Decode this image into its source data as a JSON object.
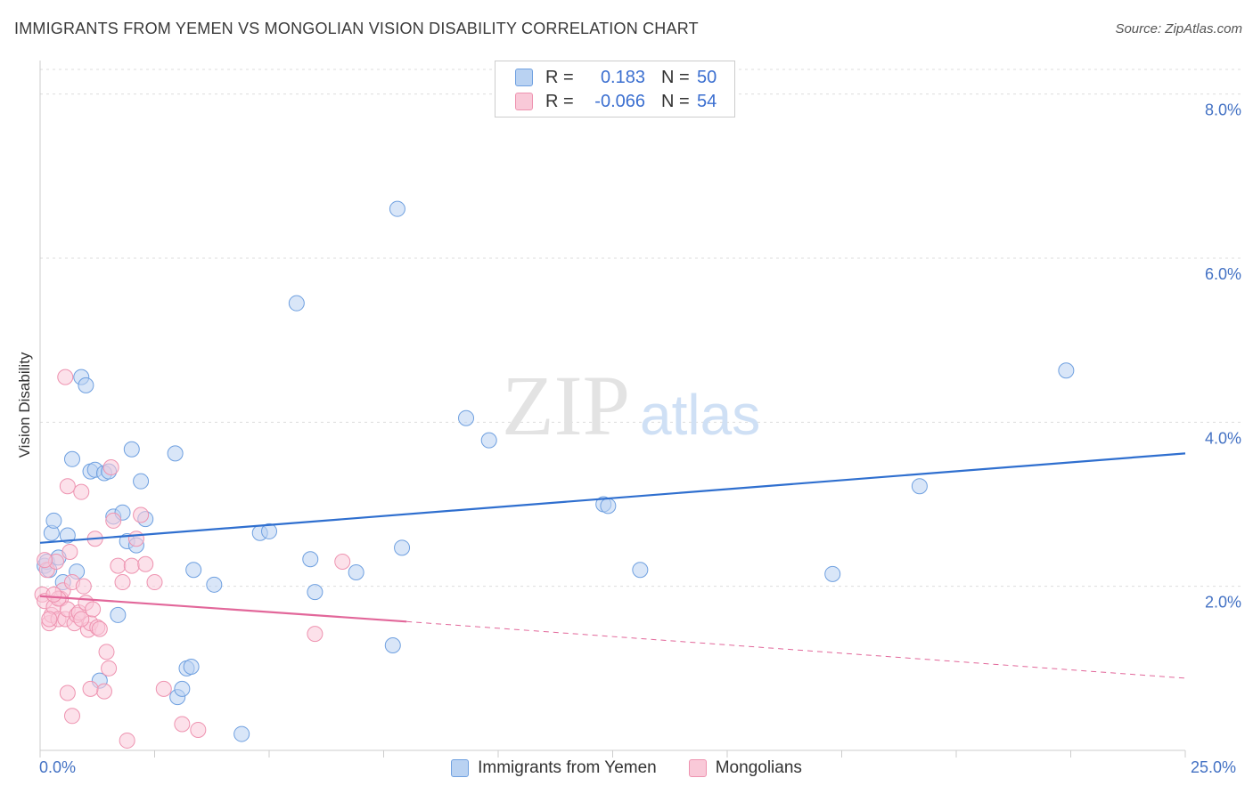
{
  "header": {
    "title": "IMMIGRANTS FROM YEMEN VS MONGOLIAN VISION DISABILITY CORRELATION CHART",
    "source": "Source: ZipAtlas.com"
  },
  "watermark": {
    "zip": "ZIP",
    "atlas": "atlas"
  },
  "legend": {
    "rows": [
      {
        "r_label": "R =",
        "r_value": "0.183",
        "n_label": "N =",
        "n_value": "50",
        "color": "#a9c6ee"
      },
      {
        "r_label": "R =",
        "r_value": "-0.066",
        "n_label": "N =",
        "n_value": "54",
        "color": "#f7b7cb"
      }
    ]
  },
  "bottom_legend": [
    {
      "label": "Immigrants from Yemen",
      "color": "#a9c6ee"
    },
    {
      "label": "Mongolians",
      "color": "#f7b7cb"
    }
  ],
  "chart_data": {
    "type": "scatter",
    "title": "IMMIGRANTS FROM YEMEN VS MONGOLIAN VISION DISABILITY CORRELATION CHART",
    "xlabel": "",
    "ylabel": "Vision Disability",
    "xlim": [
      0,
      25
    ],
    "ylim": [
      0,
      8.3
    ],
    "x_tick_labels": [
      "0.0%",
      "25.0%"
    ],
    "y_ticks": [
      2,
      4,
      6,
      8
    ],
    "y_tick_labels": [
      "2.0%",
      "4.0%",
      "6.0%",
      "8.0%"
    ],
    "series": [
      {
        "name": "Immigrants from Yemen",
        "color": "#6fa0e0",
        "fill": "#b9d2f2",
        "trend": {
          "x0": 0,
          "y0": 2.53,
          "x1": 25,
          "y1": 3.62,
          "style": "solid",
          "color": "#2f6fcf"
        },
        "points": [
          [
            0.1,
            2.25
          ],
          [
            0.15,
            2.3
          ],
          [
            0.25,
            2.65
          ],
          [
            0.3,
            2.8
          ],
          [
            0.4,
            2.35
          ],
          [
            0.5,
            2.05
          ],
          [
            0.6,
            2.62
          ],
          [
            0.7,
            3.55
          ],
          [
            0.8,
            2.18
          ],
          [
            0.9,
            4.55
          ],
          [
            1.0,
            4.45
          ],
          [
            1.1,
            3.4
          ],
          [
            1.2,
            3.42
          ],
          [
            1.4,
            3.38
          ],
          [
            1.5,
            3.4
          ],
          [
            1.3,
            0.85
          ],
          [
            1.6,
            2.85
          ],
          [
            1.7,
            1.65
          ],
          [
            1.8,
            2.9
          ],
          [
            1.9,
            2.55
          ],
          [
            2.0,
            3.67
          ],
          [
            2.1,
            2.5
          ],
          [
            2.2,
            3.28
          ],
          [
            2.3,
            2.82
          ],
          [
            2.95,
            3.62
          ],
          [
            3.0,
            0.65
          ],
          [
            3.1,
            0.75
          ],
          [
            3.2,
            1.0
          ],
          [
            3.3,
            1.02
          ],
          [
            3.35,
            2.2
          ],
          [
            3.8,
            2.02
          ],
          [
            4.4,
            0.2
          ],
          [
            4.8,
            2.65
          ],
          [
            5.0,
            2.67
          ],
          [
            5.6,
            5.45
          ],
          [
            5.9,
            2.33
          ],
          [
            6.0,
            1.93
          ],
          [
            6.9,
            2.17
          ],
          [
            7.7,
            1.28
          ],
          [
            7.8,
            6.6
          ],
          [
            7.9,
            2.47
          ],
          [
            9.3,
            4.05
          ],
          [
            9.8,
            3.78
          ],
          [
            12.3,
            3.0
          ],
          [
            12.4,
            2.98
          ],
          [
            13.1,
            2.2
          ],
          [
            17.3,
            2.15
          ],
          [
            19.2,
            3.22
          ],
          [
            22.4,
            4.63
          ],
          [
            0.2,
            2.2
          ]
        ]
      },
      {
        "name": "Mongolians",
        "color": "#ee93b0",
        "fill": "#f9c9d8",
        "trend": {
          "x0": 0,
          "y0": 1.88,
          "x1": 8.0,
          "y1": 1.57,
          "dash_x1": 25,
          "dash_y1": 0.88,
          "style": "solid-then-dashed",
          "color": "#e2679a"
        },
        "points": [
          [
            0.05,
            1.9
          ],
          [
            0.1,
            1.82
          ],
          [
            0.15,
            2.2
          ],
          [
            0.2,
            1.55
          ],
          [
            0.25,
            1.65
          ],
          [
            0.3,
            1.75
          ],
          [
            0.35,
            2.3
          ],
          [
            0.4,
            1.6
          ],
          [
            0.45,
            1.85
          ],
          [
            0.5,
            1.95
          ],
          [
            0.55,
            1.6
          ],
          [
            0.6,
            1.72
          ],
          [
            0.6,
            3.22
          ],
          [
            0.65,
            2.42
          ],
          [
            0.7,
            2.05
          ],
          [
            0.75,
            1.55
          ],
          [
            0.8,
            1.65
          ],
          [
            0.85,
            1.68
          ],
          [
            0.9,
            3.15
          ],
          [
            0.95,
            2.0
          ],
          [
            1.0,
            1.8
          ],
          [
            1.05,
            1.47
          ],
          [
            1.1,
            1.55
          ],
          [
            1.15,
            1.72
          ],
          [
            1.2,
            2.58
          ],
          [
            1.25,
            1.5
          ],
          [
            1.3,
            1.48
          ],
          [
            1.4,
            0.72
          ],
          [
            1.45,
            1.2
          ],
          [
            1.5,
            1.0
          ],
          [
            1.55,
            3.45
          ],
          [
            1.6,
            2.8
          ],
          [
            1.7,
            2.25
          ],
          [
            1.8,
            2.05
          ],
          [
            1.9,
            0.12
          ],
          [
            2.0,
            2.25
          ],
          [
            2.1,
            2.58
          ],
          [
            2.2,
            2.87
          ],
          [
            2.3,
            2.27
          ],
          [
            2.5,
            2.05
          ],
          [
            2.7,
            0.75
          ],
          [
            3.1,
            0.32
          ],
          [
            3.45,
            0.25
          ],
          [
            6.0,
            1.42
          ],
          [
            6.6,
            2.3
          ],
          [
            0.7,
            0.42
          ],
          [
            0.6,
            0.7
          ],
          [
            0.55,
            4.55
          ],
          [
            0.4,
            1.85
          ],
          [
            0.3,
            1.9
          ],
          [
            0.2,
            1.6
          ],
          [
            1.1,
            0.75
          ],
          [
            0.9,
            1.6
          ],
          [
            0.1,
            2.32
          ]
        ]
      }
    ]
  }
}
